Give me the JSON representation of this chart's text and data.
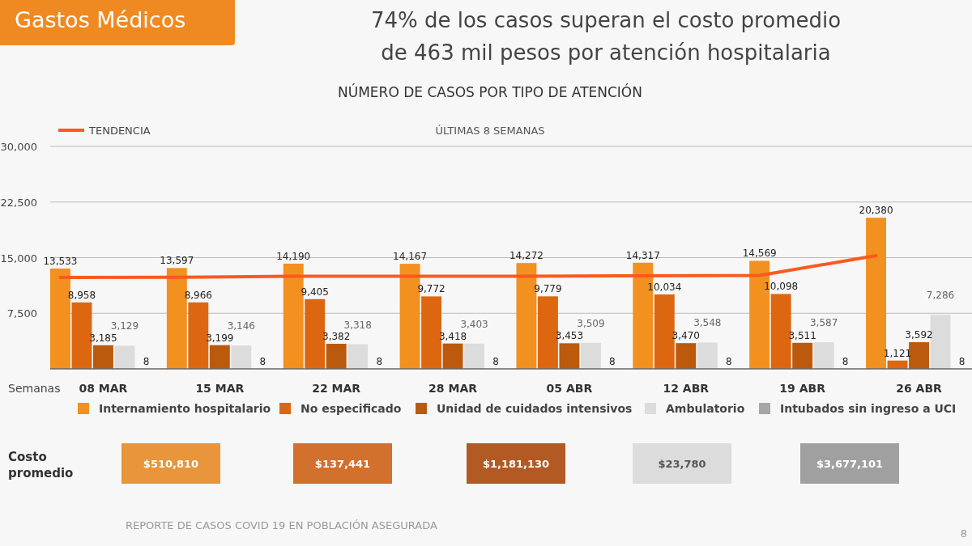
{
  "chart_data": {
    "type": "bar",
    "title": "NÚMERO DE CASOS POR TIPO DE ATENCIÓN",
    "xlabel": "Semanas",
    "categories": [
      "08 MAR",
      "15 MAR",
      "22 MAR",
      "28 MAR",
      "05 ABR",
      "12 ABR",
      "19 ABR",
      "26 ABR"
    ],
    "series": [
      {
        "name": "Internamiento hospitalario",
        "color": "#f29020",
        "values": [
          13533,
          13597,
          14190,
          14167,
          14272,
          14317,
          14569,
          20380
        ],
        "value_labels": [
          "13,533",
          "13,597",
          "14,190",
          "14,167",
          "14,272",
          "14,317",
          "14,569",
          "20,380"
        ]
      },
      {
        "name": "No especificado",
        "color": "#dd6711",
        "values": [
          8958,
          8966,
          9405,
          9772,
          9779,
          10034,
          10098,
          1121
        ],
        "value_labels": [
          "8,958",
          "8,966",
          "9,405",
          "9,772",
          "9,779",
          "10,034",
          "10,098",
          "1,121"
        ]
      },
      {
        "name": "Unidad de cuidados intensivos",
        "color": "#bb5a0c",
        "values": [
          3185,
          3199,
          3382,
          3418,
          3453,
          3470,
          3511,
          3592
        ],
        "value_labels": [
          "3,185",
          "3,199",
          "3,382",
          "3,418",
          "3,453",
          "3,470",
          "3,511",
          "3,592"
        ]
      },
      {
        "name": "Ambulatorio",
        "color": "#dcdcdc",
        "values": [
          3129,
          3146,
          3318,
          3403,
          3509,
          3548,
          3587,
          7286
        ],
        "value_labels": [
          "3,129",
          "3,146",
          "3,318",
          "3,403",
          "3,509",
          "3,548",
          "3,587",
          "7,286"
        ]
      },
      {
        "name": "Intubados sin ingreso a UCI",
        "color": "#a6a6a6",
        "values": [
          8,
          8,
          8,
          8,
          8,
          8,
          8,
          8
        ],
        "value_labels": [
          "8",
          "8",
          "8",
          "8",
          "8",
          "8",
          "8",
          "8"
        ]
      },
      {
        "name": "TENDENCIA",
        "type": "line",
        "color": "#fa5a1e",
        "values": [
          12320,
          12350,
          12480,
          12500,
          12500,
          12550,
          12600,
          15270
        ]
      }
    ],
    "ylim": [
      0,
      30000
    ],
    "yticks": [
      {
        "value": 0,
        "label": null
      },
      {
        "value": 7500,
        "label": "7,500"
      },
      {
        "value": 15000,
        "label": "15,000"
      },
      {
        "value": 22500,
        "label": "22,500"
      },
      {
        "value": 30000,
        "label": "30,000"
      }
    ],
    "grid": "y",
    "legend": "bottom",
    "annotations": [
      "Gastos Médicos",
      "74% de los casos superan el costo promedio",
      "de 463 mil pesos por atención hospitalaria",
      "ÚLTIMAS 8 SEMANAS",
      "Costo promedio",
      "$510,810",
      "$137,441",
      "$1,181,130",
      "$23,780",
      "$3,677,101",
      "REPORTE DE CASOS COVID 19 EN POBLACIÓN ASEGURADA",
      "8"
    ]
  }
}
